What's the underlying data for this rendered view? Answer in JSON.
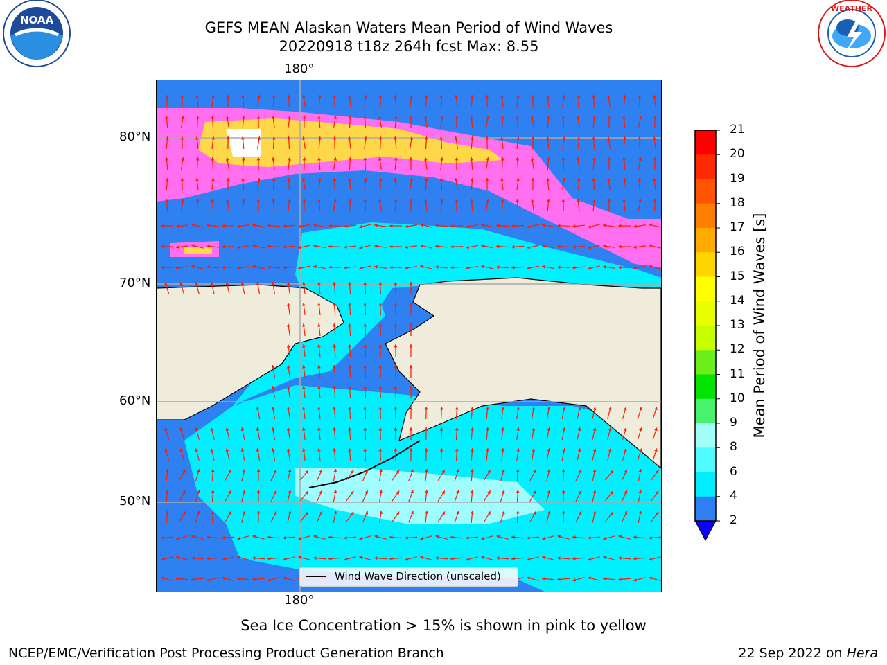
{
  "title": {
    "line1": "GEFS MEAN Alaskan Waters Mean Period of Wind Waves",
    "line2": "20220918 t18z 264h fcst   Max: 8.55"
  },
  "logos": {
    "noaa": {
      "text": "NOAA",
      "ring_text": "NATIONAL OCEANIC AND ATMOSPHERIC ADMINISTRATION · U.S. DEPARTMENT OF COMMERCE",
      "color": "#1e4a9a"
    },
    "nws": {
      "ring_text": "NATIONAL WEATHER SERVICE",
      "color": "#d6191b"
    }
  },
  "map": {
    "top_lon_label": "180°",
    "bottom_lon_label": "180°",
    "lat_labels": [
      "80°N",
      "70°N",
      "60°N",
      "50°N"
    ],
    "legend_label": "Wind Wave Direction (unscaled)",
    "colors": {
      "land": "#efecdc",
      "ocean_low": "#2f80f0",
      "ocean_mid": "#00f0ff",
      "ocean_light": "#9ffcff",
      "ice_pink": "#ff6ff0",
      "ice_yellow": "#ffd84a",
      "arrow": "#ff1a00",
      "grid": "#aaaaaa"
    }
  },
  "colorbar": {
    "title": "Mean Period of Wind Waves [s]",
    "ticks": [
      "21",
      "20",
      "19",
      "18",
      "17",
      "16",
      "15",
      "14",
      "13",
      "12",
      "11",
      "10",
      "9",
      "8",
      "6",
      "4",
      "2"
    ],
    "colors": [
      "#ff0000",
      "#ff2a00",
      "#ff5500",
      "#ff8000",
      "#ffab00",
      "#ffd500",
      "#ffff00",
      "#e8ff00",
      "#c8ff00",
      "#6cee1a",
      "#00e400",
      "#46f26e",
      "#a0fff6",
      "#50fcff",
      "#00eeff",
      "#2e7ff2"
    ],
    "extend_color": "#0a00ff"
  },
  "notes": {
    "sea_ice": "Sea Ice Concentration > 15% is shown in pink to yellow"
  },
  "footer": {
    "left": "NCEP/EMC/Verification Post Processing Product Generation Branch",
    "date": "22 Sep 2022 on ",
    "machine": "Hera"
  }
}
